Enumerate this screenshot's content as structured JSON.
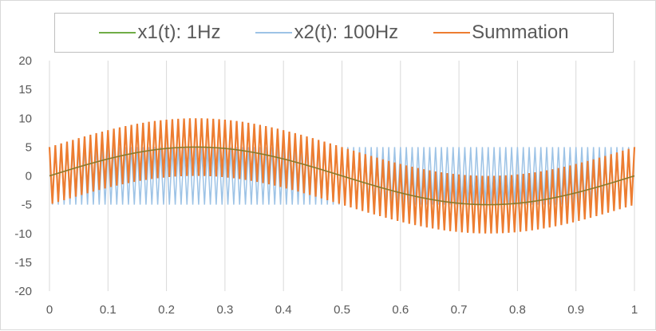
{
  "chart_data": {
    "type": "line",
    "title": "",
    "xlabel": "",
    "ylabel": "",
    "xlim": [
      0,
      1
    ],
    "ylim": [
      -20,
      20
    ],
    "x_ticks": [
      "0",
      "0.1",
      "0.2",
      "0.3",
      "0.4",
      "0.5",
      "0.6",
      "0.7",
      "0.8",
      "0.9",
      "1"
    ],
    "y_ticks": [
      "20",
      "15",
      "10",
      "5",
      "0",
      "-5",
      "-10",
      "-15",
      "-20"
    ],
    "grid": "vertical",
    "legend_position": "top",
    "sample_step": 0.0025,
    "series": [
      {
        "name": "x1(t): 1Hz",
        "amplitude": 5,
        "frequency_hz": 1,
        "color": "#70ad47",
        "formula": "5*sin(2*pi*1*t)"
      },
      {
        "name": "x2(t): 100Hz",
        "amplitude": 5,
        "frequency_hz": 100,
        "color": "#9dc3e6",
        "formula": "5*sin(2*pi*100*t)"
      },
      {
        "name": "Summation",
        "color": "#ed7d31",
        "formula": "x1(t) + x2(t)"
      }
    ]
  }
}
